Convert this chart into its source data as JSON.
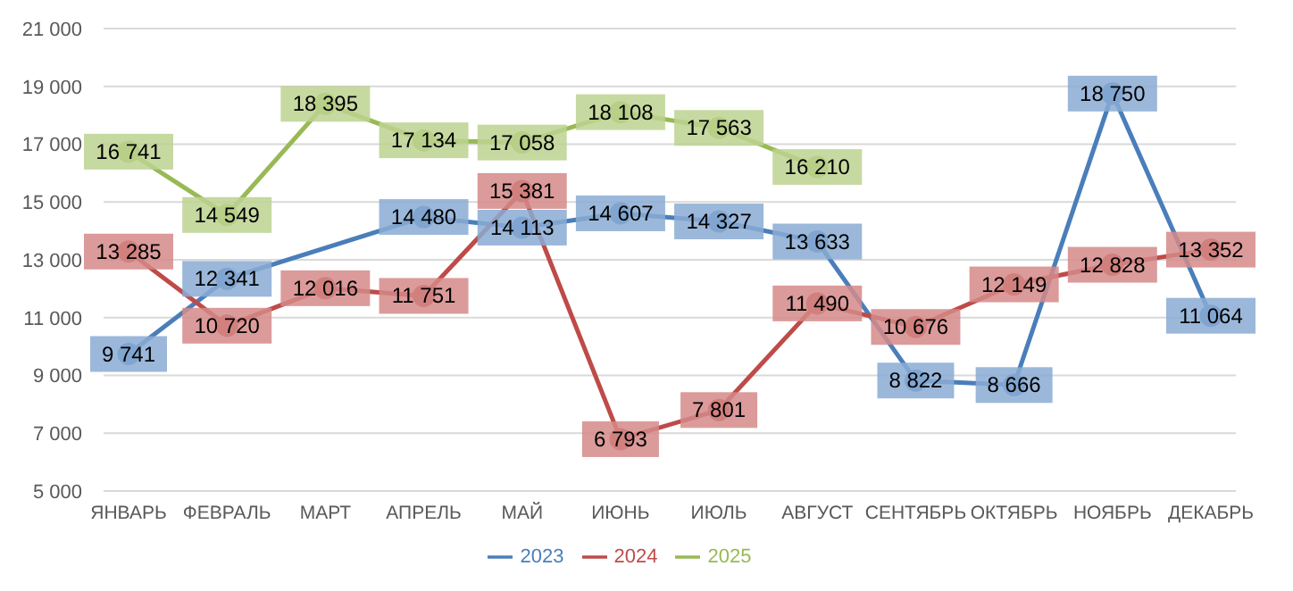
{
  "chart_data": {
    "type": "line",
    "categories": [
      "ЯНВАРЬ",
      "ФЕВРАЛЬ",
      "МАРТ",
      "АПРЕЛЬ",
      "МАЙ",
      "ИЮНЬ",
      "ИЮЛЬ",
      "АВГУСТ",
      "СЕНТЯБРЬ",
      "ОКТЯБРЬ",
      "НОЯБРЬ",
      "ДЕКАБРЬ"
    ],
    "series": [
      {
        "name": "2023",
        "color": "#4a7ebb",
        "values": [
          9741,
          12341,
          null,
          14480,
          14113,
          14607,
          14327,
          13633,
          8822,
          8666,
          18750,
          11064
        ],
        "value_labels": [
          "9 741",
          "12 341",
          null,
          "14 480",
          "14 113",
          "14 607",
          "14 327",
          "13 633",
          "8 822",
          "8 666",
          "18 750",
          "11 064"
        ]
      },
      {
        "name": "2024",
        "color": "#be4b48",
        "values": [
          13285,
          10720,
          12016,
          11751,
          15381,
          6793,
          7801,
          11490,
          10676,
          12149,
          12828,
          13352
        ],
        "value_labels": [
          "13 285",
          "10 720",
          "12 016",
          "11 751",
          "15 381",
          "6 793",
          "7 801",
          "11 490",
          "10 676",
          "12 149",
          "12 828",
          "13 352"
        ]
      },
      {
        "name": "2025",
        "color": "#98b954",
        "values": [
          16741,
          14549,
          18395,
          17134,
          17058,
          18108,
          17563,
          16210,
          null,
          null,
          null,
          null
        ],
        "value_labels": [
          "16 741",
          "14 549",
          "18 395",
          "17 134",
          "17 058",
          "18 108",
          "17 563",
          "16 210",
          null,
          null,
          null,
          null
        ]
      }
    ],
    "ylim": [
      5000,
      21000
    ],
    "yticks": [
      {
        "value": 5000,
        "label": "5 000"
      },
      {
        "value": 7000,
        "label": "7 000"
      },
      {
        "value": 9000,
        "label": "9 000"
      },
      {
        "value": 11000,
        "label": "11 000"
      },
      {
        "value": 13000,
        "label": "13 000"
      },
      {
        "value": 15000,
        "label": "15 000"
      },
      {
        "value": 17000,
        "label": "17 000"
      },
      {
        "value": 19000,
        "label": "19 000"
      },
      {
        "value": 21000,
        "label": "21 000"
      }
    ],
    "grid": "y",
    "legend": "bottom",
    "marker": "circle",
    "line_style": "solid"
  }
}
